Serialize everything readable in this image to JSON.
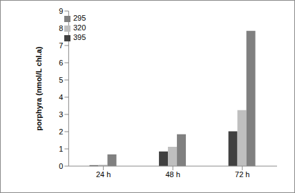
{
  "chart_data": {
    "type": "bar",
    "y_label": "porphyra (nmol/L chl.a)",
    "categories": [
      "24 h",
      "48 h",
      "72 h"
    ],
    "series": [
      {
        "name": "395",
        "color": "#404040",
        "values": [
          0.05,
          0.85,
          2.02
        ]
      },
      {
        "name": "320",
        "color": "#bfbfbf",
        "values": [
          0.08,
          1.12,
          3.25
        ]
      },
      {
        "name": "295",
        "color": "#808080",
        "values": [
          0.68,
          1.85,
          7.85
        ]
      }
    ],
    "ylim": [
      0,
      9
    ],
    "yticks": [
      0,
      1,
      2,
      3,
      4,
      5,
      6,
      7,
      8,
      9
    ],
    "grid": false,
    "legend": "upper left"
  }
}
